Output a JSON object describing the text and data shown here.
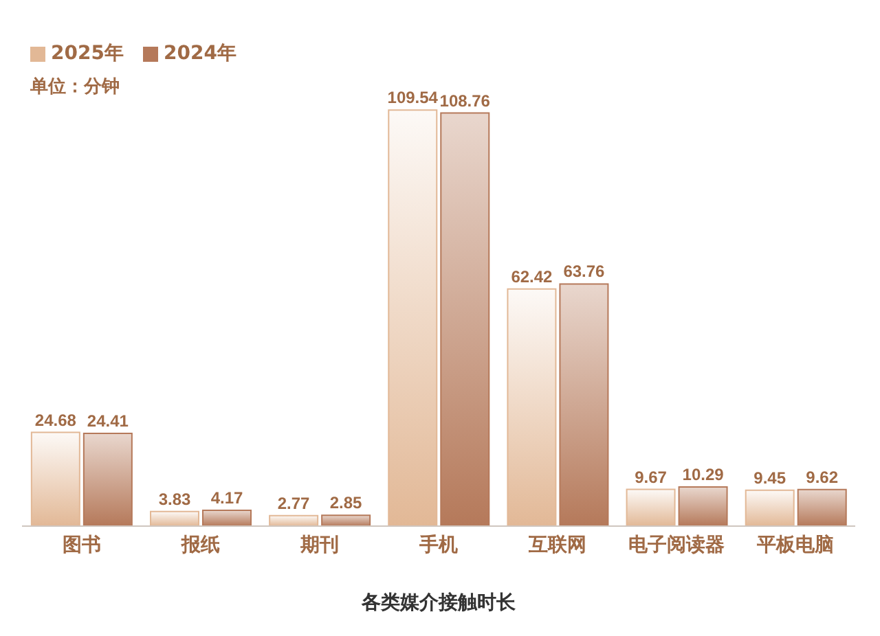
{
  "chart_data": {
    "type": "bar",
    "xlabel": "各类媒介接触时长",
    "annotations": [
      "单位：分钟"
    ],
    "categories": [
      "图书",
      "报纸",
      "期刊",
      "手机",
      "互联网",
      "电子阅读器",
      "平板电脑"
    ],
    "series": [
      {
        "name": "2025年",
        "color": "#e2b896",
        "values": [
          24.68,
          3.83,
          2.77,
          109.54,
          62.42,
          9.67,
          9.45
        ]
      },
      {
        "name": "2024年",
        "color": "#b5795a",
        "values": [
          24.41,
          4.17,
          2.85,
          108.76,
          63.76,
          10.29,
          9.62
        ]
      }
    ],
    "data_labels": true,
    "legend": "top left",
    "grid": false
  }
}
